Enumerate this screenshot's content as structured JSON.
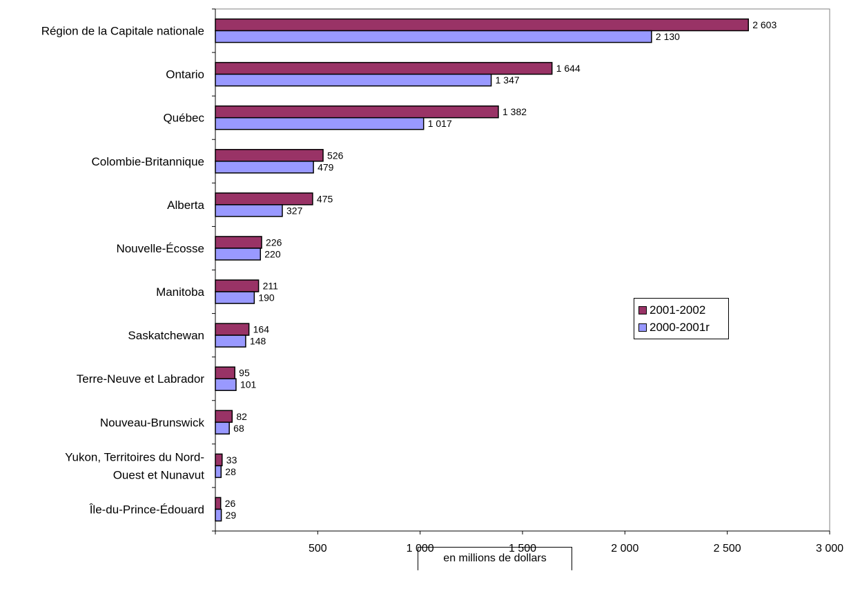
{
  "chart_data": {
    "type": "bar",
    "orientation": "horizontal",
    "categories": [
      "Région de la Capitale nationale",
      "Ontario",
      "Québec",
      "Colombie-Britannique",
      "Alberta",
      "Nouvelle-Écosse",
      "Manitoba",
      "Saskatchewan",
      "Terre-Neuve et Labrador",
      "Nouveau-Brunswick",
      "Yukon, Territoires du Nord-Ouest et Nunavut",
      "Île-du-Prince-Édouard"
    ],
    "category_lines": [
      [
        "Région de la Capitale nationale"
      ],
      [
        "Ontario"
      ],
      [
        "Québec"
      ],
      [
        "Colombie-Britannique"
      ],
      [
        "Alberta"
      ],
      [
        "Nouvelle-Écosse"
      ],
      [
        "Manitoba"
      ],
      [
        "Saskatchewan"
      ],
      [
        "Terre-Neuve et Labrador"
      ],
      [
        "Nouveau-Brunswick"
      ],
      [
        "Yukon, Territoires du Nord-",
        "Ouest et Nunavut"
      ],
      [
        "Île-du-Prince-Édouard"
      ]
    ],
    "series": [
      {
        "name": "2001-2002",
        "color": "#993366",
        "values": [
          2603,
          1644,
          1382,
          526,
          475,
          226,
          211,
          164,
          95,
          82,
          33,
          26
        ],
        "labels": [
          "2 603",
          "1 644",
          "1 382",
          "526",
          "475",
          "226",
          "211",
          "164",
          "95",
          "82",
          "33",
          "26"
        ]
      },
      {
        "name": "2000-2001r",
        "color": "#9999ff",
        "values": [
          2130,
          1347,
          1017,
          479,
          327,
          220,
          190,
          148,
          101,
          68,
          28,
          29
        ],
        "labels": [
          "2 130",
          "1 347",
          "1 017",
          "479",
          "327",
          "220",
          "190",
          "148",
          "101",
          "68",
          "28",
          "29"
        ]
      }
    ],
    "xlabel": "en millions de dollars",
    "xlim": [
      0,
      3000
    ],
    "ticks": [
      500,
      1000,
      1500,
      2000,
      2500,
      3000
    ],
    "tick_labels": [
      "500",
      "1 000",
      "1 500",
      "2 000",
      "2 500",
      "3 000"
    ],
    "grid": false,
    "legend_position": "right"
  }
}
